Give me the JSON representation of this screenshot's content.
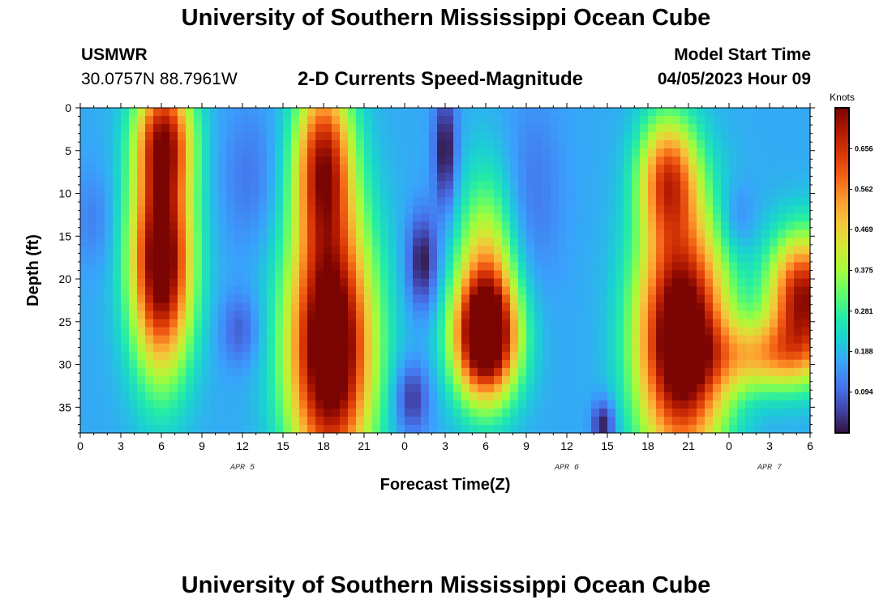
{
  "header": {
    "title": "University of Southern Mississippi Ocean Cube",
    "station": "USMWR",
    "coords": "30.0757N  88.7961W",
    "subtitle": "2-D Currents Speed-Magnitude",
    "model_start_label": "Model Start Time",
    "model_start_value": "04/05/2023 Hour 09"
  },
  "footer": {
    "title": "University of Southern Mississippi Ocean Cube"
  },
  "chart_data": {
    "type": "heatmap",
    "title": "2-D Currents Speed-Magnitude",
    "xlabel": "Forecast Time(Z)",
    "ylabel": "Depth (ft)",
    "x_unit": "forecast hour from 04/05 00Z",
    "x_range": [
      0,
      54
    ],
    "x_ticks": [
      0,
      3,
      6,
      9,
      12,
      15,
      18,
      21,
      24,
      27,
      30,
      33,
      36,
      39,
      42,
      45,
      48,
      51,
      54
    ],
    "x_tick_labels": [
      "0",
      "3",
      "6",
      "9",
      "12",
      "15",
      "18",
      "21",
      "0",
      "3",
      "6",
      "9",
      "12",
      "15",
      "18",
      "21",
      "0",
      "3",
      "6"
    ],
    "day_labels": [
      {
        "text": "APR 5",
        "hour": 12
      },
      {
        "text": "APR 6",
        "hour": 36
      },
      {
        "text": "APR 7",
        "hour": 51
      }
    ],
    "y_range": [
      0,
      38
    ],
    "y_inverted": true,
    "y_ticks": [
      0,
      5,
      10,
      15,
      20,
      25,
      30,
      35
    ],
    "colorbar": {
      "label": "Knots",
      "range": [
        0,
        0.75
      ],
      "ticks": [
        0.094,
        0.188,
        0.281,
        0.375,
        0.469,
        0.562,
        0.656
      ],
      "tick_labels": [
        "0.094",
        "0.188",
        "0.281",
        "0.375",
        "0.469",
        "0.562",
        "0.656"
      ],
      "colors": [
        "#30123b",
        "#4145ab",
        "#4675ed",
        "#39a2fc",
        "#1bcfd4",
        "#24eca6",
        "#61fc6c",
        "#a4fc3b",
        "#d1e834",
        "#f3c63a",
        "#fe9b2d",
        "#f36315",
        "#d93806",
        "#b11901",
        "#7a0402"
      ]
    },
    "background_speed": 0.17,
    "features": [
      {
        "hour": 6.0,
        "depth": 18,
        "speed": 0.66,
        "sh": 1.6,
        "sd": 9
      },
      {
        "hour": 6.2,
        "depth": 3,
        "speed": 0.42,
        "sh": 1.5,
        "sd": 5
      },
      {
        "hour": 18.5,
        "depth": 28,
        "speed": 0.72,
        "sh": 2.2,
        "sd": 11
      },
      {
        "hour": 18.0,
        "depth": 6,
        "speed": 0.48,
        "sh": 1.5,
        "sd": 7
      },
      {
        "hour": 30.0,
        "depth": 27,
        "speed": 0.6,
        "sh": 1.7,
        "sd": 5
      },
      {
        "hour": 30.0,
        "depth": 20,
        "speed": 0.3,
        "sh": 1.5,
        "sd": 8
      },
      {
        "hour": 44.5,
        "depth": 27,
        "speed": 0.72,
        "sh": 2.3,
        "sd": 10
      },
      {
        "hour": 43.5,
        "depth": 8,
        "speed": 0.4,
        "sh": 1.5,
        "sd": 5
      },
      {
        "hour": 53.5,
        "depth": 22,
        "speed": 0.55,
        "sh": 1.8,
        "sd": 5
      },
      {
        "hour": 51.0,
        "depth": 29,
        "speed": 0.3,
        "sh": 3.0,
        "sd": 3
      },
      {
        "hour": 27.0,
        "depth": 5,
        "speed": -0.18,
        "sh": 0.6,
        "sd": 5
      },
      {
        "hour": 25.3,
        "depth": 18,
        "speed": -0.17,
        "sh": 0.8,
        "sd": 4
      },
      {
        "hour": 24.5,
        "depth": 34,
        "speed": -0.14,
        "sh": 0.9,
        "sd": 3
      },
      {
        "hour": 11.8,
        "depth": 26,
        "speed": -0.09,
        "sh": 1.0,
        "sd": 3
      },
      {
        "hour": 12.5,
        "depth": 8,
        "speed": -0.06,
        "sh": 1.5,
        "sd": 6
      },
      {
        "hour": 38.7,
        "depth": 37,
        "speed": -0.17,
        "sh": 0.6,
        "sd": 2
      },
      {
        "hour": 48.5,
        "depth": 13,
        "speed": -0.07,
        "sh": 1.0,
        "sd": 3
      },
      {
        "hour": 33.5,
        "depth": 10,
        "speed": -0.06,
        "sh": 1.5,
        "sd": 8
      },
      {
        "hour": 1.0,
        "depth": 13,
        "speed": -0.05,
        "sh": 1.0,
        "sd": 4
      }
    ]
  }
}
